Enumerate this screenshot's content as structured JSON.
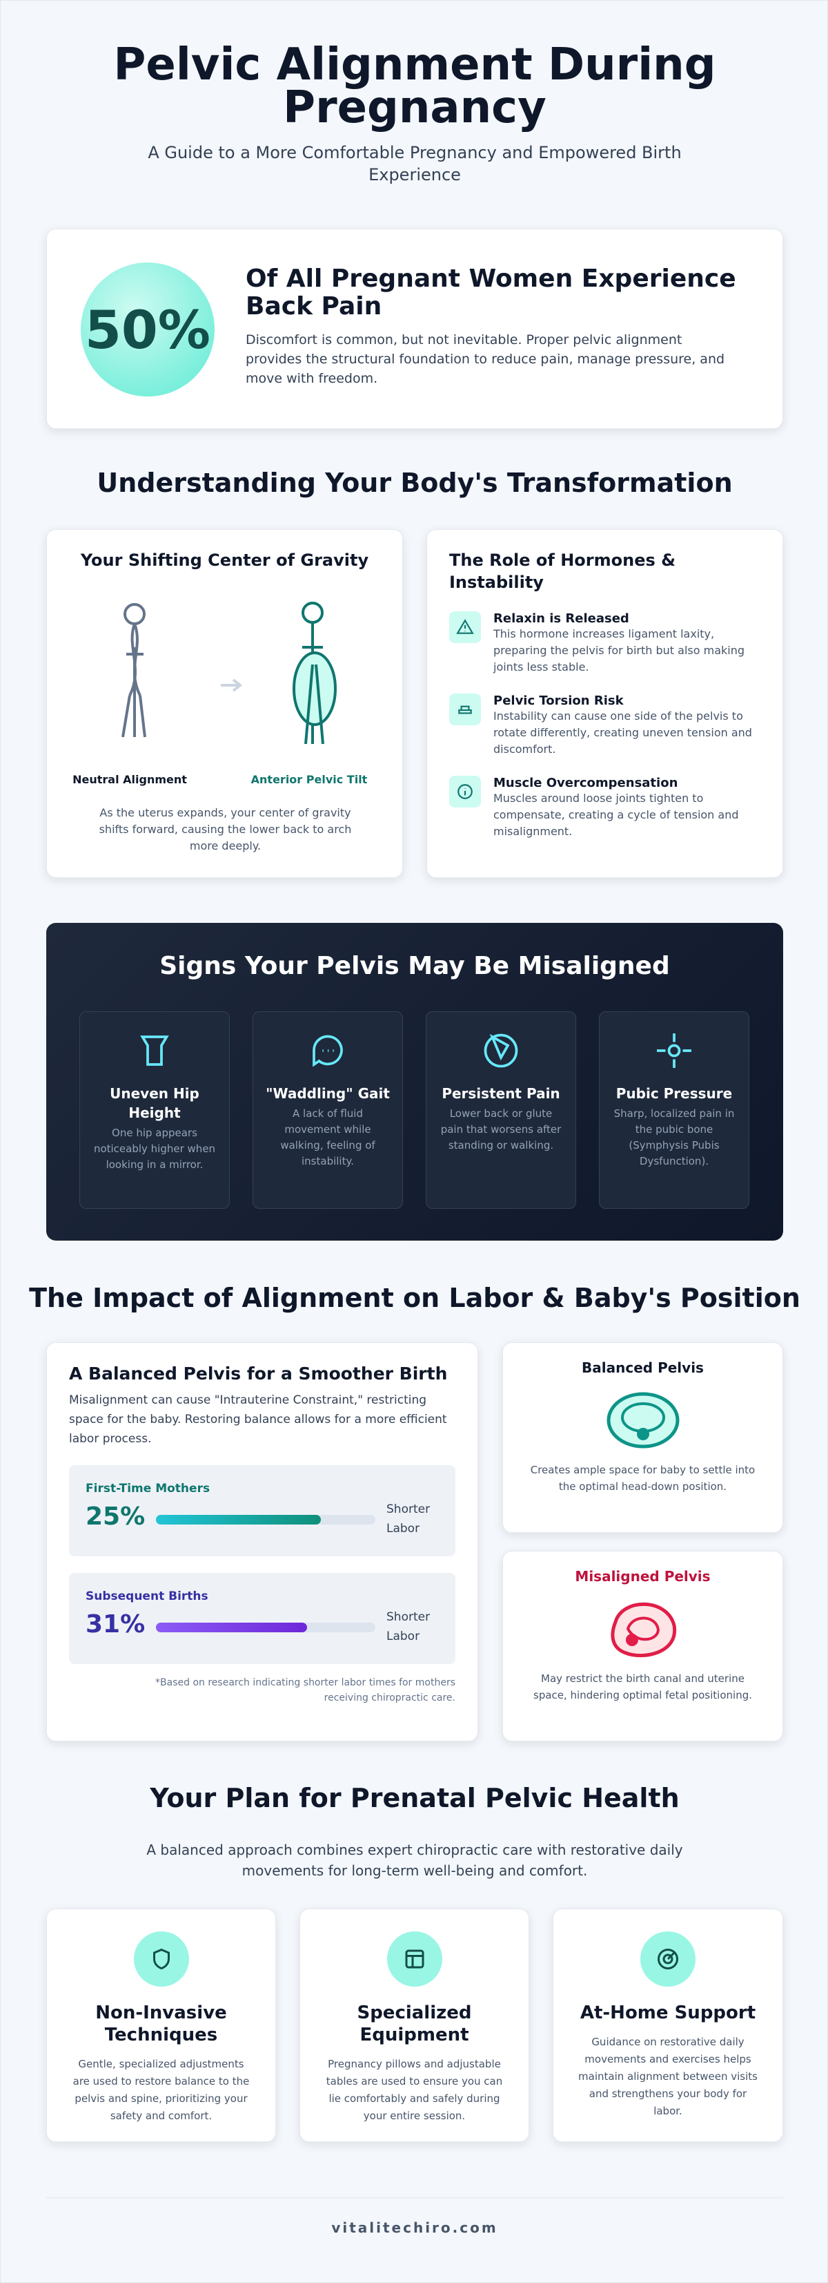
{
  "header": {
    "title": "Pelvic Alignment During Pregnancy",
    "subtitle": "A Guide to a More Comfortable Pregnancy and Empowered Birth Experience"
  },
  "stat": {
    "value": "50%",
    "title": "Of All Pregnant Women Experience Back Pain",
    "text": "Discomfort is common, but not inevitable. Proper pelvic alignment provides the structural foundation to reduce pain, manage pressure, and move with freedom."
  },
  "transformation": {
    "title": "Understanding Your Body's Transformation",
    "gravity": {
      "title": "Your Shifting Center of Gravity",
      "neutral_label": "Neutral Alignment",
      "tilt_label": "Anterior Pelvic Tilt",
      "text": "As the uterus expands, your center of gravity shifts forward, causing the lower back to arch more deeply."
    },
    "hormones": {
      "title": "The Role of Hormones & Instability",
      "items": [
        {
          "title": "Relaxin is Released",
          "text": "This hormone increases ligament laxity, preparing the pelvis for birth but also making joints less stable."
        },
        {
          "title": "Pelvic Torsion Risk",
          "text": "Instability can cause one side of the pelvis to rotate differently, creating uneven tension and discomfort."
        },
        {
          "title": "Muscle Overcompensation",
          "text": "Muscles around loose joints tighten to compensate, creating a cycle of tension and misalignment."
        }
      ]
    }
  },
  "signs": {
    "title": "Signs Your Pelvis May Be Misaligned",
    "items": [
      {
        "title": "Uneven Hip Height",
        "text": "One hip appears noticeably higher when looking in a mirror."
      },
      {
        "title": "\"Waddling\" Gait",
        "text": "A lack of fluid movement while walking, feeling of instability."
      },
      {
        "title": "Persistent Pain",
        "text": "Lower back or glute pain that worsens after standing or walking."
      },
      {
        "title": "Pubic Pressure",
        "text": "Sharp, localized pain in the pubic bone (Symphysis Pubis Dysfunction)."
      }
    ]
  },
  "impact": {
    "title": "The Impact of Alignment on Labor & Baby's Position",
    "main": {
      "title": "A Balanced Pelvis for a Smoother Birth",
      "text": "Misalignment can cause \"Intrauterine Constraint,\" restricting space for the baby. Restoring balance allows for a more efficient labor process.",
      "stats": [
        {
          "label": "First-Time Mothers",
          "value": "25%",
          "note": "Shorter Labor"
        },
        {
          "label": "Subsequent Births",
          "value": "31%",
          "note": "Shorter Labor"
        }
      ],
      "footnote": "*Based on research indicating shorter labor times for mothers receiving chiropractic care."
    },
    "balanced": {
      "title": "Balanced Pelvis",
      "text": "Creates ample space for baby to settle into the optimal head-down position."
    },
    "misaligned": {
      "title": "Misaligned Pelvis",
      "text": "May restrict the birth canal and uterine space, hindering optimal fetal positioning."
    }
  },
  "plan": {
    "title": "Your Plan for Prenatal Pelvic Health",
    "subtitle": "A balanced approach combines expert chiropractic care with restorative daily movements for long-term well-being and comfort.",
    "items": [
      {
        "title": "Non-Invasive Techniques",
        "text": "Gentle, specialized adjustments are used to restore balance to the pelvis and spine, prioritizing your safety and comfort."
      },
      {
        "title": "Specialized Equipment",
        "text": "Pregnancy pillows and adjustable tables are used to ensure you can lie comfortably and safely during your entire session."
      },
      {
        "title": "At-Home Support",
        "text": "Guidance on restorative daily movements and exercises helps maintain alignment between visits and strengthens your body for labor."
      }
    ]
  },
  "footer": {
    "site": "vitalitechiro.com"
  }
}
